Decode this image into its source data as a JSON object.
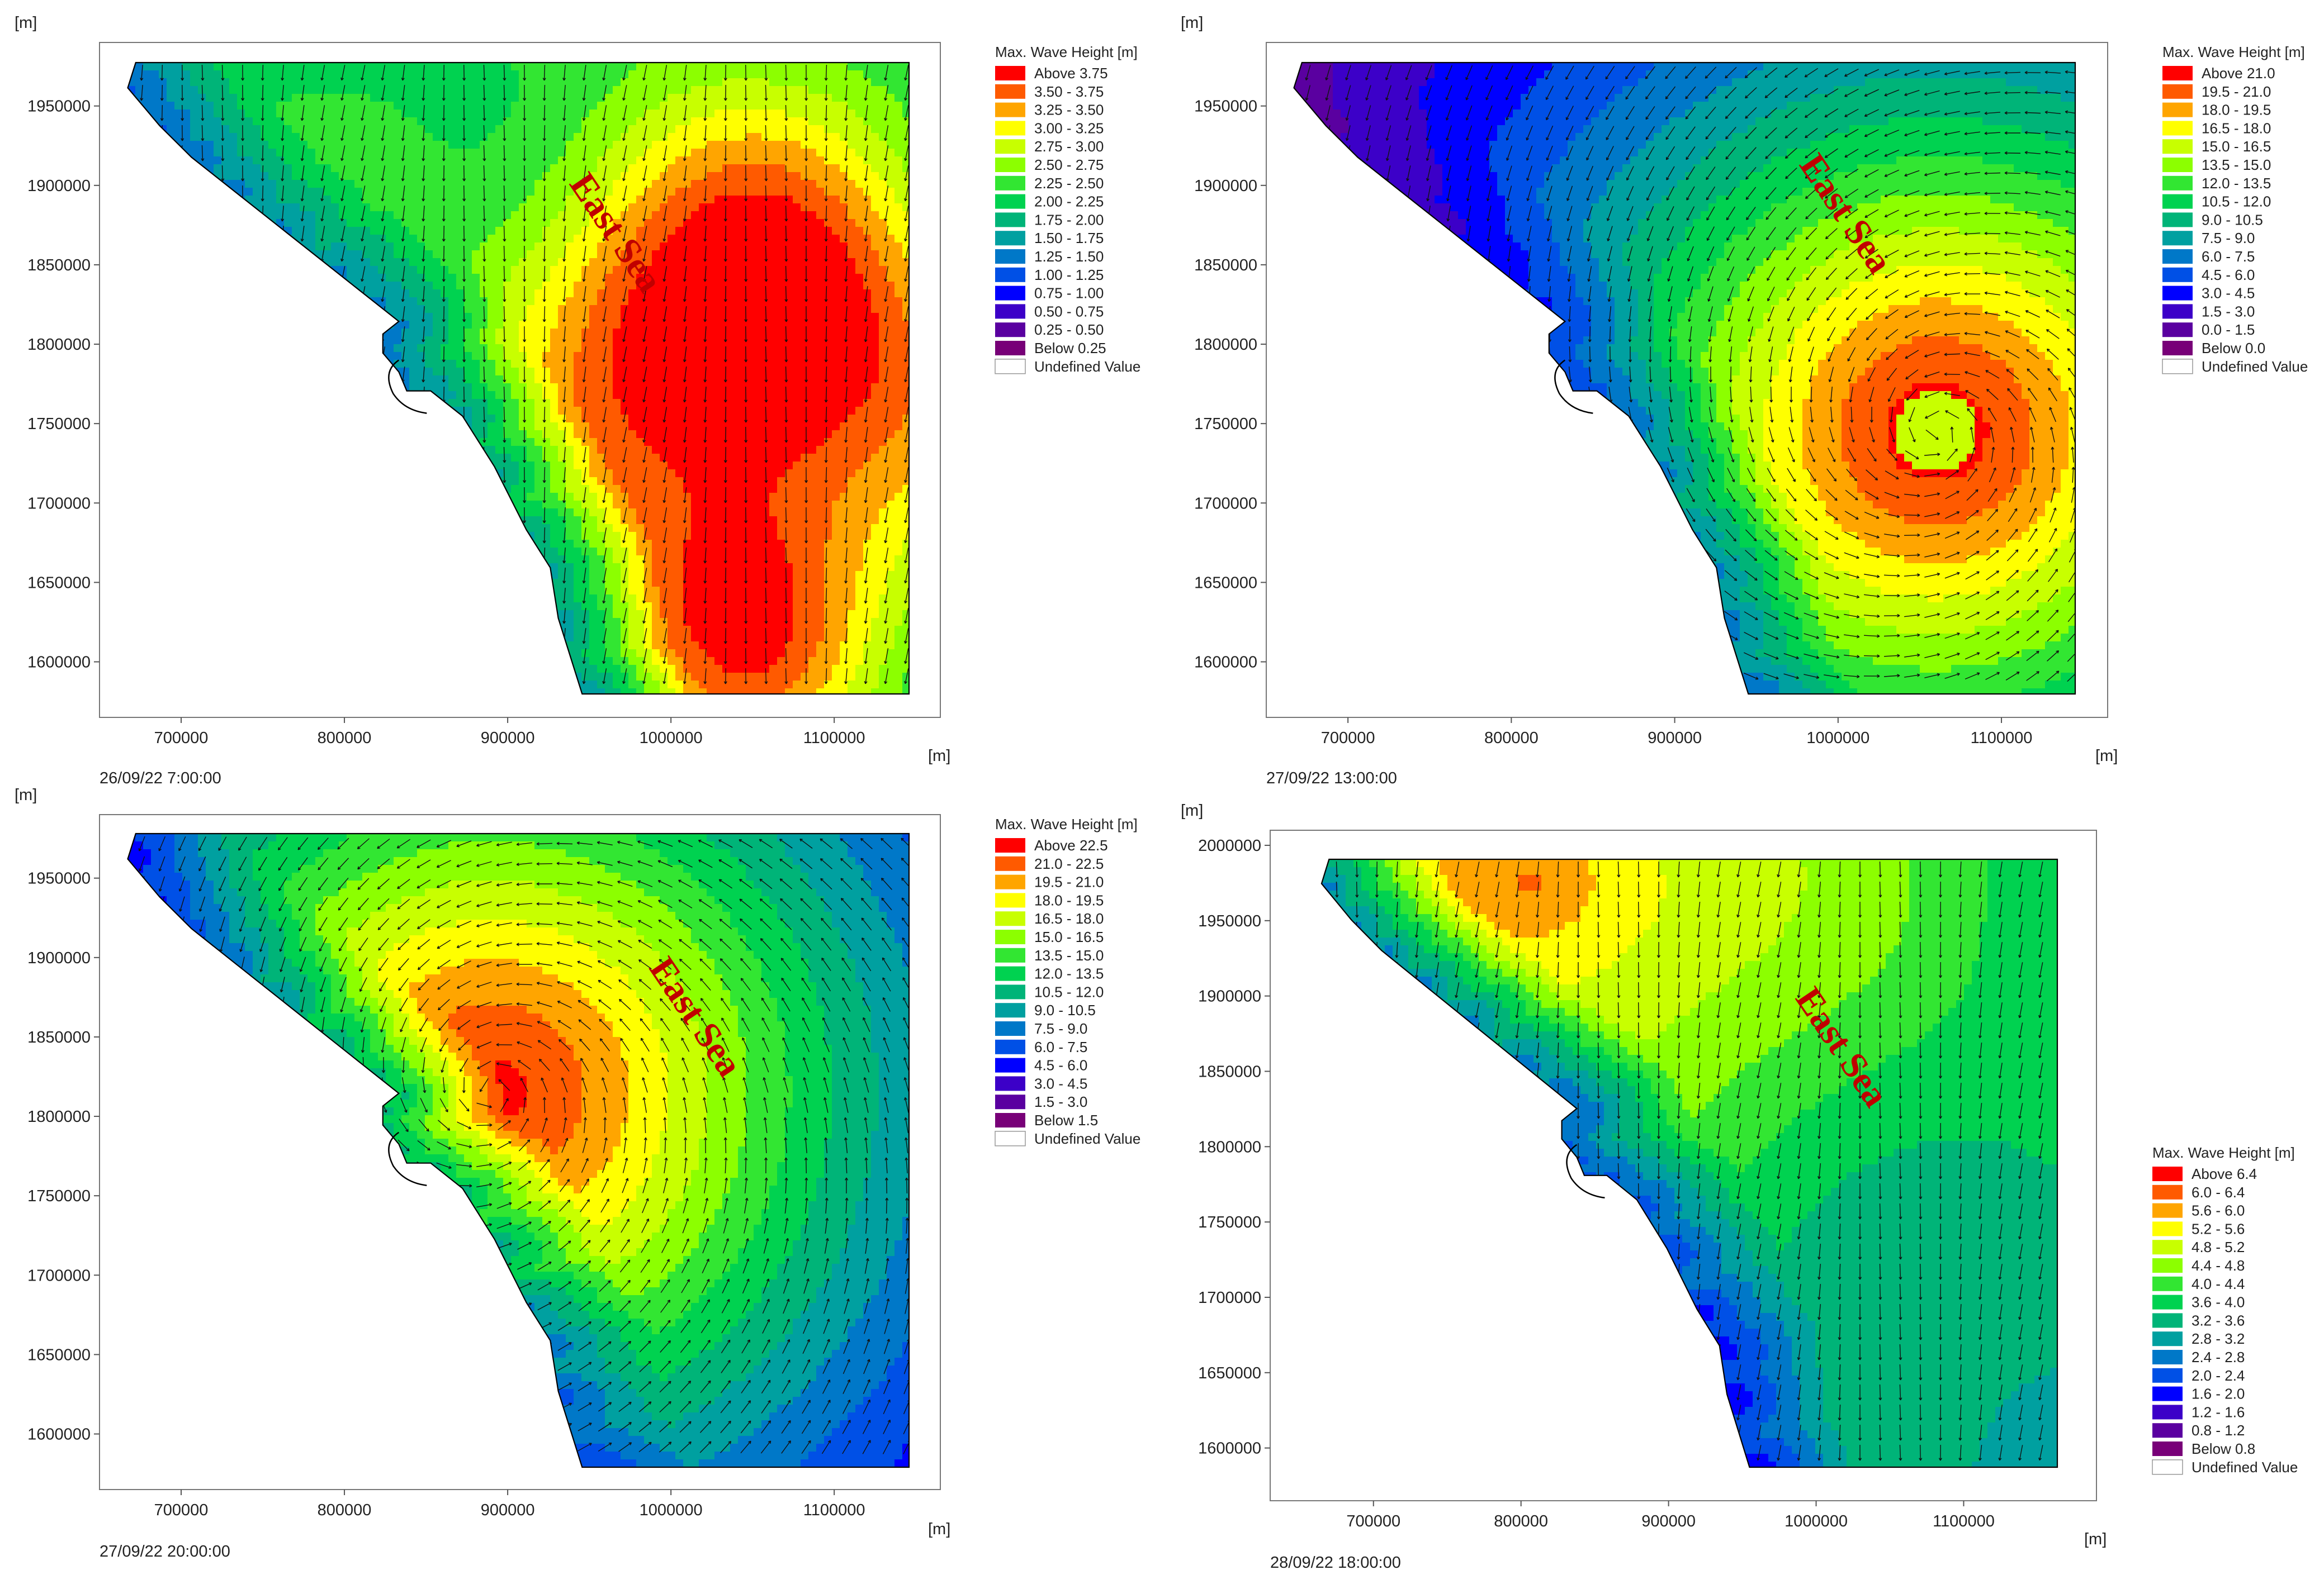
{
  "chart_data": [
    {
      "type": "heatmap",
      "timestamp": "26/09/22 7:00:00",
      "annotation": "East Sea",
      "axis_unit_y": "[m]",
      "axis_unit_x": "[m]",
      "xticks": [
        "700000",
        "800000",
        "900000",
        "1000000",
        "1100000"
      ],
      "yticks": [
        "1950000",
        "1900000",
        "1850000",
        "1800000",
        "1750000",
        "1700000",
        "1650000",
        "1600000"
      ],
      "xlim": [
        650000,
        1165000
      ],
      "ylim": [
        1565000,
        1990000
      ],
      "legend": {
        "title": "Max. Wave Height [m]",
        "entries": [
          {
            "label": "Above 3.75",
            "color": "#ff0000"
          },
          {
            "label": "3.50 - 3.75",
            "color": "#ff5a00"
          },
          {
            "label": "3.25 - 3.50",
            "color": "#ffa500"
          },
          {
            "label": "3.00 - 3.25",
            "color": "#ffff00"
          },
          {
            "label": "2.75 - 3.00",
            "color": "#c8ff00"
          },
          {
            "label": "2.50 - 2.75",
            "color": "#8cff00"
          },
          {
            "label": "2.25 - 2.50",
            "color": "#32e632"
          },
          {
            "label": "2.00 - 2.25",
            "color": "#00d250"
          },
          {
            "label": "1.75 - 2.00",
            "color": "#00b478"
          },
          {
            "label": "1.50 - 1.75",
            "color": "#00a0a0"
          },
          {
            "label": "1.25 - 1.50",
            "color": "#0078c8"
          },
          {
            "label": "1.00 - 1.25",
            "color": "#0050e6"
          },
          {
            "label": "0.75 - 1.00",
            "color": "#0000ff"
          },
          {
            "label": "0.50 - 0.75",
            "color": "#3c00c8"
          },
          {
            "label": "0.25 - 0.50",
            "color": "#5a00a0"
          },
          {
            "label": "Below 0.25",
            "color": "#780078"
          },
          {
            "label": "Undefined Value",
            "color": "#ffffff"
          }
        ]
      },
      "field": {
        "base": 2.1,
        "baseColorIndex": 8,
        "peaks": [
          {
            "x": 1030000,
            "y": 1810000,
            "r": 140000,
            "amp": 1.8
          },
          {
            "x": 1040000,
            "y": 1620000,
            "r": 90000,
            "amp": 1.4
          },
          {
            "x": 1100000,
            "y": 1780000,
            "r": 120000,
            "amp": 0.6
          }
        ],
        "coastLow": 1.6
      },
      "vectors": "southward"
    },
    {
      "type": "heatmap",
      "timestamp": "27/09/22 13:00:00",
      "annotation": "East Sea",
      "axis_unit_y": "[m]",
      "axis_unit_x": "[m]",
      "xticks": [
        "700000",
        "800000",
        "900000",
        "1000000",
        "1100000"
      ],
      "yticks": [
        "1950000",
        "1900000",
        "1850000",
        "1800000",
        "1750000",
        "1700000",
        "1650000",
        "1600000"
      ],
      "xlim": [
        650000,
        1165000
      ],
      "ylim": [
        1565000,
        1990000
      ],
      "legend": {
        "title": "Max. Wave Height [m]",
        "entries": [
          {
            "label": "Above 21.0",
            "color": "#ff0000"
          },
          {
            "label": "19.5 - 21.0",
            "color": "#ff5a00"
          },
          {
            "label": "18.0 - 19.5",
            "color": "#ffa500"
          },
          {
            "label": "16.5 - 18.0",
            "color": "#ffff00"
          },
          {
            "label": "15.0 - 16.5",
            "color": "#c8ff00"
          },
          {
            "label": "13.5 - 15.0",
            "color": "#8cff00"
          },
          {
            "label": "12.0 - 13.5",
            "color": "#32e632"
          },
          {
            "label": "10.5 - 12.0",
            "color": "#00d250"
          },
          {
            "label": "9.0 - 10.5",
            "color": "#00b478"
          },
          {
            "label": "7.5 -  9.0",
            "color": "#00a0a0"
          },
          {
            "label": "6.0 -  7.5",
            "color": "#0078c8"
          },
          {
            "label": "4.5 -  6.0",
            "color": "#0050e6"
          },
          {
            "label": "3.0 -  4.5",
            "color": "#0000ff"
          },
          {
            "label": "1.5 -  3.0",
            "color": "#3c00c8"
          },
          {
            "label": "0.0 -  1.5",
            "color": "#5a00a0"
          },
          {
            "label": "Below   0.0",
            "color": "#780078"
          },
          {
            "label": "Undefined Value",
            "color": "#ffffff"
          }
        ]
      },
      "cyclone": {
        "x": 1060000,
        "y": 1745000,
        "peak": 22,
        "r": 330000,
        "eye": 25000
      },
      "vectors": "cyclone"
    },
    {
      "type": "heatmap",
      "timestamp": "27/09/22 20:00:00",
      "annotation": "East Sea",
      "axis_unit_y": "[m]",
      "axis_unit_x": "[m]",
      "xticks": [
        "700000",
        "800000",
        "900000",
        "1000000",
        "1100000"
      ],
      "yticks": [
        "1950000",
        "1900000",
        "1850000",
        "1800000",
        "1750000",
        "1700000",
        "1650000",
        "1600000"
      ],
      "xlim": [
        650000,
        1165000
      ],
      "ylim": [
        1565000,
        1990000
      ],
      "legend": {
        "title": "Max. Wave Height [m]",
        "entries": [
          {
            "label": "Above 22.5",
            "color": "#ff0000"
          },
          {
            "label": "21.0 - 22.5",
            "color": "#ff5a00"
          },
          {
            "label": "19.5 - 21.0",
            "color": "#ffa500"
          },
          {
            "label": "18.0 - 19.5",
            "color": "#ffff00"
          },
          {
            "label": "16.5 - 18.0",
            "color": "#c8ff00"
          },
          {
            "label": "15.0 - 16.5",
            "color": "#8cff00"
          },
          {
            "label": "13.5 - 15.0",
            "color": "#32e632"
          },
          {
            "label": "12.0 - 13.5",
            "color": "#00d250"
          },
          {
            "label": "10.5 - 12.0",
            "color": "#00b478"
          },
          {
            "label": "9.0 - 10.5",
            "color": "#00a0a0"
          },
          {
            "label": "7.5 -  9.0",
            "color": "#0078c8"
          },
          {
            "label": "6.0 -  7.5",
            "color": "#0050e6"
          },
          {
            "label": "4.5 -  6.0",
            "color": "#0000ff"
          },
          {
            "label": "3.0 -  4.5",
            "color": "#3c00c8"
          },
          {
            "label": "1.5 -  3.0",
            "color": "#5a00a0"
          },
          {
            "label": "Below   1.5",
            "color": "#780078"
          },
          {
            "label": "Undefined Value",
            "color": "#ffffff"
          }
        ]
      },
      "cyclone": {
        "x": 890000,
        "y": 1815000,
        "peak": 23,
        "r": 380000,
        "eye": 0
      },
      "vectors": "cyclone"
    },
    {
      "type": "heatmap",
      "timestamp": "28/09/22 18:00:00",
      "annotation": "East Sea",
      "axis_unit_y": "[m]",
      "axis_unit_x": "[m]",
      "xticks": [
        "700000",
        "800000",
        "900000",
        "1000000",
        "1100000"
      ],
      "yticks": [
        "2000000",
        "1950000",
        "1900000",
        "1850000",
        "1800000",
        "1750000",
        "1700000",
        "1650000",
        "1600000"
      ],
      "xlim": [
        630000,
        1190000
      ],
      "ylim": [
        1565000,
        2010000
      ],
      "legend": {
        "title": "Max. Wave Height [m]",
        "entries": [
          {
            "label": "Above 6.4",
            "color": "#ff0000"
          },
          {
            "label": "6.0 - 6.4",
            "color": "#ff5a00"
          },
          {
            "label": "5.6 - 6.0",
            "color": "#ffa500"
          },
          {
            "label": "5.2 - 5.6",
            "color": "#ffff00"
          },
          {
            "label": "4.8 - 5.2",
            "color": "#c8ff00"
          },
          {
            "label": "4.4 - 4.8",
            "color": "#8cff00"
          },
          {
            "label": "4.0 - 4.4",
            "color": "#32e632"
          },
          {
            "label": "3.6 - 4.0",
            "color": "#00d250"
          },
          {
            "label": "3.2 - 3.6",
            "color": "#00b478"
          },
          {
            "label": "2.8 - 3.2",
            "color": "#00a0a0"
          },
          {
            "label": "2.4 - 2.8",
            "color": "#0078c8"
          },
          {
            "label": "2.0 - 2.4",
            "color": "#0050e6"
          },
          {
            "label": "1.6 - 2.0",
            "color": "#0000ff"
          },
          {
            "label": "1.2 - 1.6",
            "color": "#3c00c8"
          },
          {
            "label": "0.8 - 1.2",
            "color": "#5a00a0"
          },
          {
            "label": "Below 0.8",
            "color": "#780078"
          },
          {
            "label": "Undefined Value",
            "color": "#ffffff"
          }
        ]
      },
      "gradient": {
        "peakX": 810000,
        "peakY": 1975000,
        "peak": 6.3,
        "decay": 300000,
        "floor": 2.6
      },
      "vectors": "southward"
    }
  ]
}
